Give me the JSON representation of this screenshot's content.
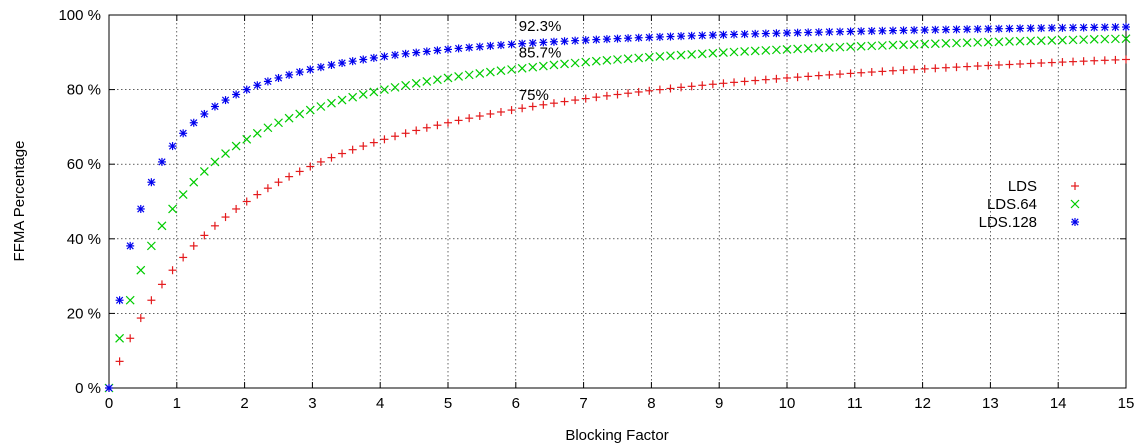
{
  "chart_data": {
    "type": "scatter",
    "xlabel": "Blocking Factor",
    "ylabel": "FFMA Percentage",
    "xlim": [
      0,
      15
    ],
    "ylim": [
      0,
      100
    ],
    "x_ticks": [
      "0",
      "1",
      "2",
      "3",
      "4",
      "5",
      "6",
      "7",
      "8",
      "9",
      "10",
      "11",
      "12",
      "13",
      "14",
      "15"
    ],
    "y_ticks": [
      "0 %",
      "20 %",
      "40 %",
      "60 %",
      "80 %",
      "100 %"
    ],
    "grid": true,
    "legend_position": "right",
    "x_step": 0.15625,
    "series": [
      {
        "name": "LDS",
        "color": "#e41a1c",
        "marker": "plus",
        "values": [
          0,
          7.14,
          13.33,
          18.75,
          23.53,
          27.78,
          31.58,
          35.0,
          38.1,
          40.91,
          43.48,
          45.83,
          48.0,
          50.0,
          51.85,
          53.57,
          55.17,
          56.67,
          58.06,
          59.38,
          60.61,
          61.76,
          62.86,
          63.89,
          64.86,
          65.79,
          66.67,
          67.5,
          68.29,
          69.05,
          69.77,
          70.45,
          71.11,
          71.74,
          72.34,
          72.92,
          73.47,
          74.0,
          74.51,
          75.0,
          75.47,
          75.93,
          76.36,
          76.79,
          77.19,
          77.59,
          77.97,
          78.33,
          78.69,
          79.03,
          79.37,
          79.69,
          80.0,
          80.3,
          80.6,
          80.88,
          81.16,
          81.43,
          81.69,
          81.94,
          82.19,
          82.43,
          82.67,
          82.89,
          83.12,
          83.33,
          83.54,
          83.75,
          83.95,
          84.15,
          84.34,
          84.52,
          84.71,
          84.88,
          85.06,
          85.23,
          85.39,
          85.56,
          85.71,
          85.87,
          86.02,
          86.17,
          86.32,
          86.46,
          86.6,
          86.73,
          86.87,
          87.0,
          87.13,
          87.25,
          87.38,
          87.5,
          87.62,
          87.74,
          87.85,
          87.96,
          88.07
        ]
      },
      {
        "name": "LDS.64",
        "color": "#00cc00",
        "marker": "cross",
        "values": [
          0,
          13.33,
          23.53,
          31.58,
          38.1,
          43.48,
          48.0,
          51.85,
          55.17,
          58.06,
          60.61,
          62.86,
          64.86,
          66.67,
          68.29,
          69.77,
          71.11,
          72.34,
          73.47,
          74.51,
          75.47,
          76.36,
          77.19,
          77.97,
          78.69,
          79.37,
          80.0,
          80.6,
          81.16,
          81.69,
          82.19,
          82.67,
          83.12,
          83.54,
          83.95,
          84.34,
          84.71,
          85.06,
          85.39,
          85.71,
          86.02,
          86.32,
          86.6,
          86.87,
          87.13,
          87.38,
          87.62,
          87.85,
          88.07,
          88.29,
          88.5,
          88.7,
          88.89,
          89.08,
          89.26,
          89.43,
          89.6,
          89.76,
          89.92,
          90.08,
          90.23,
          90.37,
          90.51,
          90.65,
          90.78,
          90.91,
          91.04,
          91.16,
          91.28,
          91.39,
          91.5,
          91.61,
          91.72,
          91.82,
          91.93,
          92.02,
          92.12,
          92.22,
          92.31,
          92.4,
          92.49,
          92.57,
          92.66,
          92.74,
          92.82,
          92.9,
          92.97,
          93.05,
          93.12,
          93.19,
          93.26,
          93.33,
          93.4,
          93.47,
          93.53,
          93.6,
          93.66
        ]
      },
      {
        "name": "LDS.128",
        "color": "#0000ee",
        "marker": "star",
        "values": [
          0,
          23.53,
          38.1,
          48.0,
          55.17,
          60.61,
          64.86,
          68.29,
          71.11,
          73.47,
          75.47,
          77.19,
          78.69,
          80.0,
          81.16,
          82.19,
          83.12,
          83.95,
          84.71,
          85.39,
          86.02,
          86.6,
          87.13,
          87.62,
          88.07,
          88.5,
          88.89,
          89.26,
          89.6,
          89.92,
          90.23,
          90.51,
          90.78,
          91.04,
          91.28,
          91.5,
          91.72,
          91.93,
          92.12,
          92.31,
          92.49,
          92.66,
          92.82,
          92.97,
          93.12,
          93.26,
          93.4,
          93.53,
          93.66,
          93.78,
          93.9,
          94.01,
          94.12,
          94.22,
          94.33,
          94.42,
          94.52,
          94.61,
          94.7,
          94.79,
          94.87,
          94.95,
          95.03,
          95.11,
          95.18,
          95.25,
          95.32,
          95.39,
          95.46,
          95.52,
          95.58,
          95.65,
          95.71,
          95.76,
          95.82,
          95.88,
          95.93,
          95.98,
          96.03,
          96.08,
          96.13,
          96.18,
          96.23,
          96.27,
          96.32,
          96.36,
          96.4,
          96.45,
          96.49,
          96.53,
          96.56,
          96.6,
          96.64,
          96.68,
          96.71,
          96.75,
          96.78
        ]
      }
    ],
    "annotations": [
      {
        "text": "92.3%",
        "x": 6.0,
        "y": 97.0
      },
      {
        "text": "85.7%",
        "x": 6.0,
        "y": 90.0
      },
      {
        "text": "75%",
        "x": 6.0,
        "y": 78.5
      }
    ]
  }
}
